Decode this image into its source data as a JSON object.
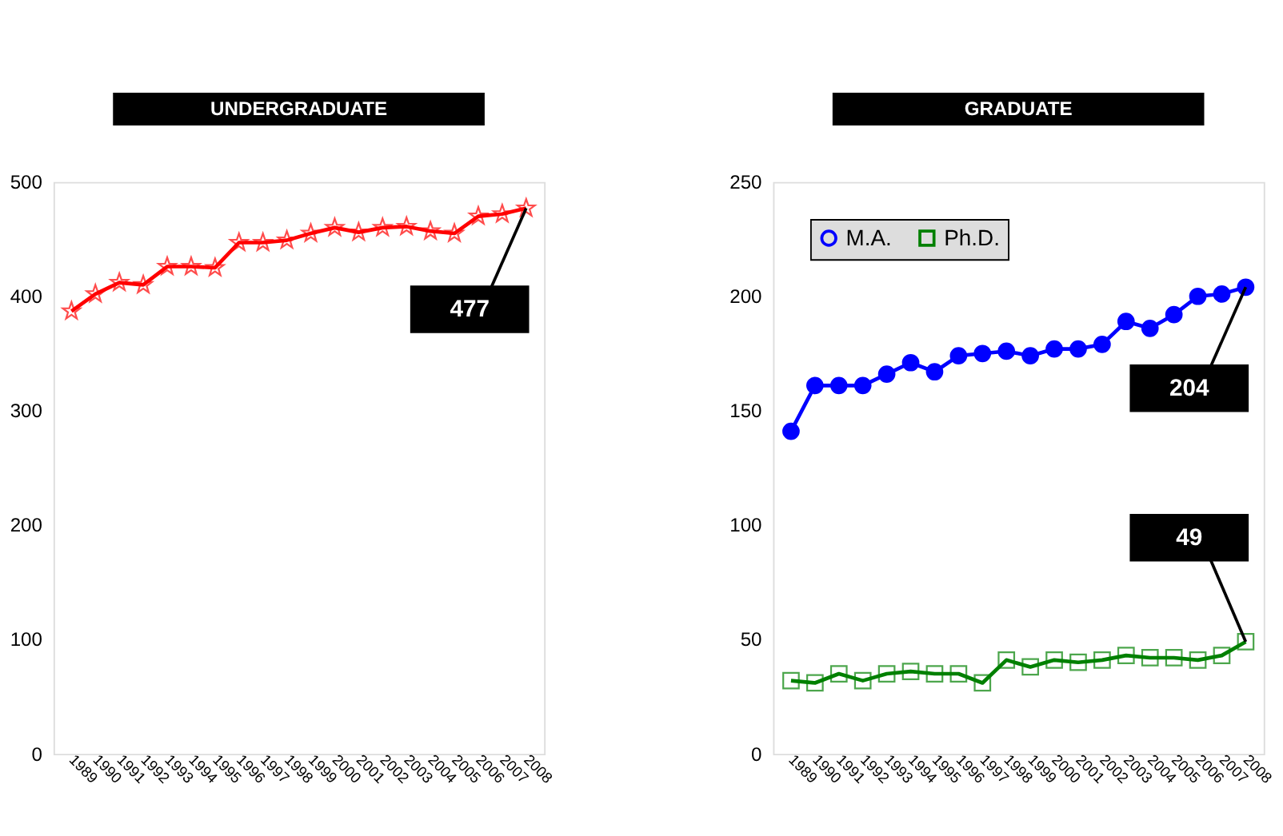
{
  "chart_data": [
    {
      "type": "line",
      "title": "UNDERGRADUATE",
      "categories": [
        "1989",
        "1990",
        "1991",
        "1992",
        "1993",
        "1994",
        "1995",
        "1996",
        "1997",
        "1998",
        "1999",
        "2000",
        "2001",
        "2002",
        "2003",
        "2004",
        "2005",
        "2006",
        "2007",
        "2008"
      ],
      "series": [
        {
          "color": "#ff0000",
          "marker": "star",
          "values": [
            387,
            402,
            412,
            410,
            426,
            426,
            425,
            447,
            447,
            449,
            455,
            460,
            456,
            460,
            461,
            457,
            455,
            470,
            472,
            477
          ]
        }
      ],
      "ylim": [
        0,
        500
      ],
      "yticks": [
        0,
        100,
        200,
        300,
        400,
        500
      ],
      "grid": false,
      "legend": false,
      "annotations": [
        {
          "text": "477",
          "x": "2008",
          "y": 477
        }
      ]
    },
    {
      "type": "line",
      "title": "GRADUATE",
      "categories": [
        "1989",
        "1990",
        "1991",
        "1992",
        "1993",
        "1994",
        "1995",
        "1996",
        "1997",
        "1998",
        "1999",
        "2000",
        "2001",
        "2002",
        "2003",
        "2004",
        "2005",
        "2006",
        "2007",
        "2008"
      ],
      "series": [
        {
          "name": "M.A.",
          "color": "#0000ff",
          "marker": "circle",
          "values": [
            141,
            161,
            161,
            161,
            166,
            171,
            167,
            174,
            175,
            176,
            174,
            177,
            177,
            179,
            189,
            186,
            192,
            200,
            201,
            204
          ]
        },
        {
          "name": "Ph.D.",
          "color": "#008000",
          "marker": "square",
          "values": [
            32,
            31,
            35,
            32,
            35,
            36,
            35,
            35,
            31,
            41,
            38,
            41,
            40,
            41,
            43,
            42,
            42,
            41,
            43,
            49
          ]
        }
      ],
      "ylim": [
        0,
        250
      ],
      "yticks": [
        0,
        50,
        100,
        150,
        200,
        250
      ],
      "grid": false,
      "legend": "top left",
      "annotations": [
        {
          "text": "204",
          "x": "2008",
          "y": 204
        },
        {
          "text": "49",
          "x": "2008",
          "y": 49
        }
      ]
    }
  ]
}
